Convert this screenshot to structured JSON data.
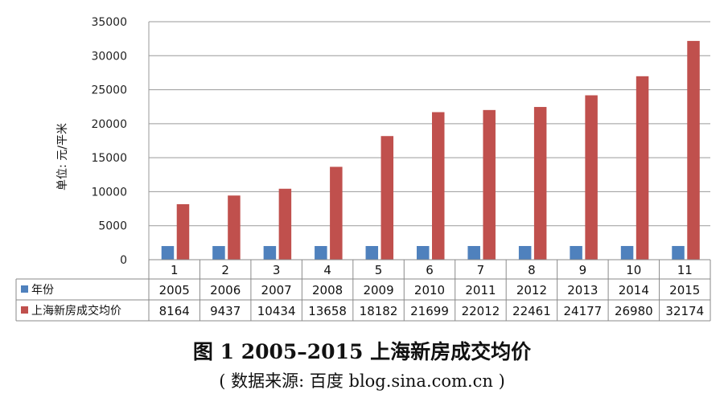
{
  "figure": {
    "title": "图 1  2005–2015 上海新房成交均价",
    "source": "( 数据来源: 百度 blog.sina.com.cn )"
  },
  "chart_data": {
    "type": "bar",
    "ylabel": "单位: 元/平米",
    "ylim": [
      0,
      35000
    ],
    "yticks": [
      "0",
      "5000",
      "10000",
      "15000",
      "20000",
      "25000",
      "30000",
      "35000"
    ],
    "grid": "horizontal",
    "legend": "table-left",
    "categories": [
      "1",
      "2",
      "3",
      "4",
      "5",
      "6",
      "7",
      "8",
      "9",
      "10",
      "11"
    ],
    "series": [
      {
        "name": "年份",
        "color": "#4F81BD",
        "values": [
          2005,
          2006,
          2007,
          2008,
          2009,
          2010,
          2011,
          2012,
          2013,
          2014,
          2015
        ],
        "labels": [
          "2005",
          "2006",
          "2007",
          "2008",
          "2009",
          "2010",
          "2011",
          "2012",
          "2013",
          "2014",
          "2015"
        ]
      },
      {
        "name": "上海新房成交均价",
        "color": "#C0504D",
        "values": [
          8164,
          9437,
          10434,
          13658,
          18182,
          21699,
          22012,
          22461,
          24177,
          26980,
          32174
        ],
        "labels": [
          "8164",
          "9437",
          "10434",
          "13658",
          "18182",
          "21699",
          "22012",
          "22461",
          "24177",
          "26980",
          "32174"
        ]
      }
    ]
  }
}
